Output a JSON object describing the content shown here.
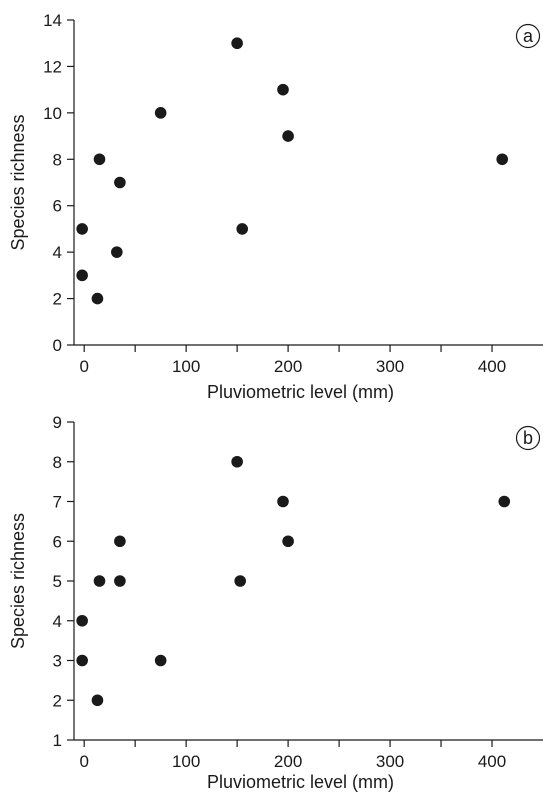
{
  "chart_data": [
    {
      "type": "scatter",
      "panel_label": "a",
      "xlabel": "Pluviometric level (mm)",
      "ylabel": "Species richness",
      "xlim": [
        -10,
        450
      ],
      "ylim": [
        0,
        14
      ],
      "xticks": [
        0,
        100,
        200,
        300,
        400
      ],
      "yticks": [
        0,
        2,
        4,
        6,
        8,
        10,
        12,
        14
      ],
      "grid": false,
      "points": [
        {
          "x": -2,
          "y": 5
        },
        {
          "x": -2,
          "y": 3
        },
        {
          "x": 13,
          "y": 2
        },
        {
          "x": 15,
          "y": 8
        },
        {
          "x": 32,
          "y": 4
        },
        {
          "x": 35,
          "y": 7
        },
        {
          "x": 75,
          "y": 10
        },
        {
          "x": 150,
          "y": 13
        },
        {
          "x": 155,
          "y": 5
        },
        {
          "x": 195,
          "y": 11
        },
        {
          "x": 200,
          "y": 9
        },
        {
          "x": 410,
          "y": 8
        }
      ]
    },
    {
      "type": "scatter",
      "panel_label": "b",
      "xlabel": "Pluviometric level (mm)",
      "ylabel": "Species richness",
      "xlim": [
        -10,
        450
      ],
      "ylim": [
        1,
        9
      ],
      "xticks": [
        0,
        100,
        200,
        300,
        400
      ],
      "yticks": [
        1,
        2,
        3,
        4,
        5,
        6,
        7,
        8,
        9
      ],
      "grid": false,
      "points": [
        {
          "x": -2,
          "y": 4
        },
        {
          "x": -2,
          "y": 3
        },
        {
          "x": 13,
          "y": 2
        },
        {
          "x": 15,
          "y": 5
        },
        {
          "x": 35,
          "y": 6
        },
        {
          "x": 35,
          "y": 5
        },
        {
          "x": 75,
          "y": 3
        },
        {
          "x": 150,
          "y": 8
        },
        {
          "x": 153,
          "y": 5
        },
        {
          "x": 195,
          "y": 7
        },
        {
          "x": 200,
          "y": 6
        },
        {
          "x": 412,
          "y": 7
        }
      ]
    }
  ]
}
